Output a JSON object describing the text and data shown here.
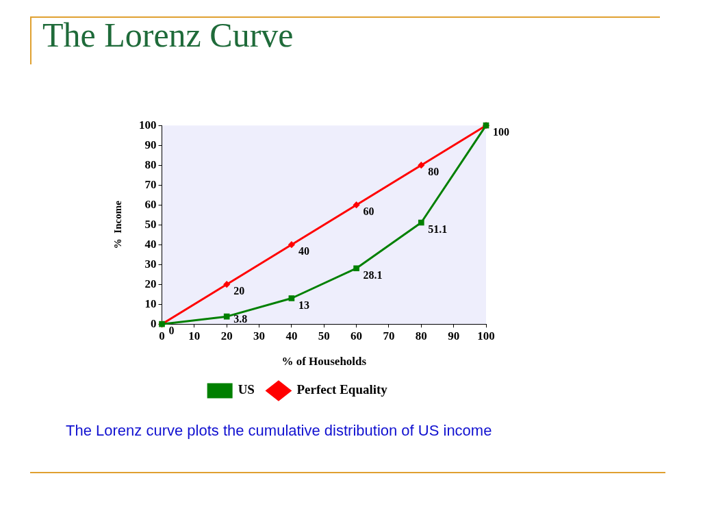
{
  "chart_data": {
    "type": "line",
    "title": "The Lorenz Curve",
    "xlabel": "% of Households",
    "ylabel": "%  Income",
    "x": [
      0,
      20,
      40,
      60,
      80,
      100
    ],
    "xlim": [
      0,
      100
    ],
    "xticks": [
      0,
      10,
      20,
      30,
      40,
      50,
      60,
      70,
      80,
      90,
      100
    ],
    "ylim": [
      0,
      100
    ],
    "yticks": [
      0,
      10,
      20,
      30,
      40,
      50,
      60,
      70,
      80,
      90,
      100
    ],
    "grid": false,
    "legend": "bottom",
    "line_style": "solid",
    "series": [
      {
        "name": "US",
        "color": "#008000",
        "marker": "square",
        "values": [
          0,
          3.8,
          13,
          28.1,
          51.1,
          100
        ],
        "value_labels": [
          "0",
          "3.8",
          "13",
          "28.1",
          "51.1",
          "100"
        ]
      },
      {
        "name": "Perfect Equality",
        "color": "#ff0000",
        "marker": "diamond",
        "values": [
          0,
          20,
          40,
          60,
          80,
          100
        ],
        "value_labels": [
          null,
          "20",
          "40",
          "60",
          "80",
          null
        ]
      }
    ],
    "annotations": [
      "The Lorenz curve plots the cumulative distribution of US income"
    ]
  }
}
